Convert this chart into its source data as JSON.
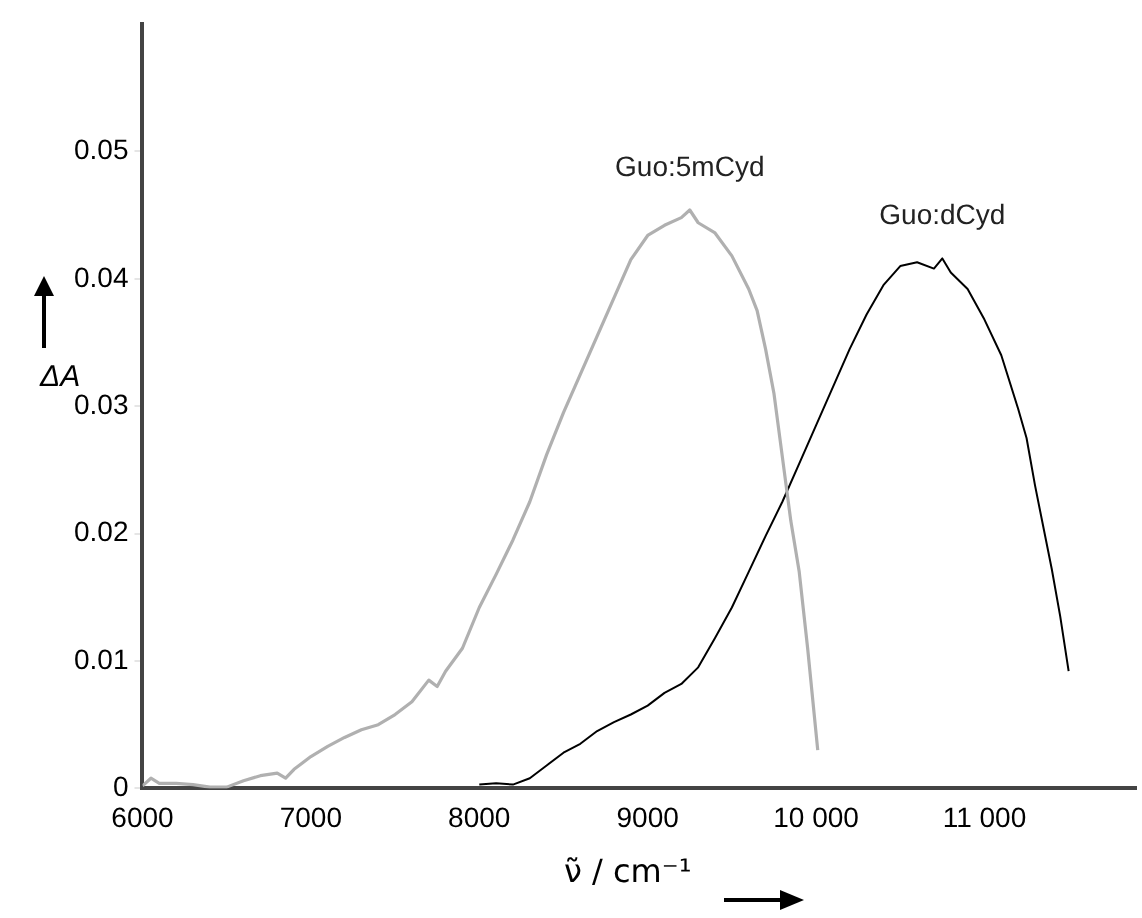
{
  "chart_data": {
    "type": "line",
    "xlabel": "ν̃ / cm⁻¹",
    "ylabel": "ΔA",
    "xlim": [
      6000,
      11900
    ],
    "xticks": [
      6000,
      7000,
      8000,
      9000,
      {
        "value": 10000,
        "label": "10 000"
      },
      {
        "value": 11000,
        "label": "11 000"
      }
    ],
    "ylim": [
      0,
      0.06
    ],
    "yticks": [
      0,
      0.01,
      0.02,
      0.03,
      0.04,
      0.05
    ],
    "grid": false,
    "legend": false,
    "marker": "none",
    "line_style": "solid",
    "series": [
      {
        "name": "Guo:5mCyd",
        "color": "#b0b0b0",
        "x": [
          6000,
          6050,
          6100,
          6200,
          6300,
          6400,
          6500,
          6600,
          6700,
          6800,
          6850,
          6900,
          7000,
          7100,
          7200,
          7300,
          7400,
          7500,
          7600,
          7700,
          7750,
          7800,
          7900,
          8000,
          8100,
          8200,
          8300,
          8400,
          8500,
          8600,
          8700,
          8800,
          8900,
          9000,
          9100,
          9200,
          9250,
          9300,
          9400,
          9500,
          9600,
          9650,
          9700,
          9750,
          9800,
          9850,
          9900,
          9950,
          10010
        ],
        "values": [
          0.0002,
          0.0008,
          0.0004,
          0.0004,
          0.0003,
          0.0001,
          0.0001,
          0.0006,
          0.001,
          0.0012,
          0.0008,
          0.0015,
          0.0025,
          0.0033,
          0.004,
          0.0046,
          0.005,
          0.0058,
          0.0068,
          0.0085,
          0.008,
          0.0092,
          0.011,
          0.0142,
          0.0168,
          0.0195,
          0.0225,
          0.0262,
          0.0295,
          0.0325,
          0.0355,
          0.0385,
          0.0415,
          0.0434,
          0.0442,
          0.0448,
          0.0454,
          0.0444,
          0.0436,
          0.0418,
          0.0392,
          0.0375,
          0.0345,
          0.031,
          0.026,
          0.021,
          0.017,
          0.011,
          0.003
        ]
      },
      {
        "name": "Guo:dCyd",
        "color": "#000000",
        "x": [
          8000,
          8100,
          8200,
          8300,
          8400,
          8500,
          8600,
          8700,
          8800,
          8900,
          9000,
          9100,
          9200,
          9300,
          9400,
          9500,
          9600,
          9700,
          9800,
          9900,
          10000,
          10100,
          10200,
          10300,
          10400,
          10500,
          10600,
          10700,
          10750,
          10800,
          10900,
          11000,
          11100,
          11200,
          11250,
          11300,
          11350,
          11400,
          11450,
          11500
        ],
        "values": [
          0.0003,
          0.0004,
          0.0003,
          0.0008,
          0.0018,
          0.0028,
          0.0035,
          0.0045,
          0.0052,
          0.0058,
          0.0065,
          0.0075,
          0.0082,
          0.0095,
          0.0118,
          0.0142,
          0.017,
          0.0198,
          0.0225,
          0.0255,
          0.0285,
          0.0315,
          0.0345,
          0.0372,
          0.0395,
          0.041,
          0.0413,
          0.0408,
          0.0416,
          0.0405,
          0.0392,
          0.0368,
          0.034,
          0.0298,
          0.0275,
          0.0238,
          0.0205,
          0.0172,
          0.0135,
          0.0092
        ]
      }
    ]
  }
}
